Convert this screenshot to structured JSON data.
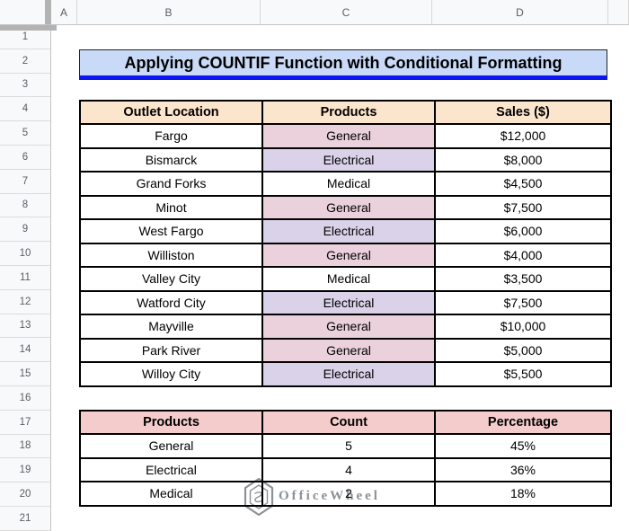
{
  "sheet": {
    "column_headers": [
      "A",
      "B",
      "C",
      "D"
    ],
    "row_numbers": [
      "1",
      "2",
      "3",
      "4",
      "5",
      "6",
      "7",
      "8",
      "9",
      "10",
      "11",
      "12",
      "13",
      "14",
      "15",
      "16",
      "17",
      "18",
      "19",
      "20",
      "21"
    ]
  },
  "title": {
    "text": "Applying COUNTIF Function with Conditional Formatting",
    "bg_color": "#c9daf8",
    "underline_color": "#0b16f2"
  },
  "sales_table": {
    "header_bg": "#fce5cd",
    "headers": [
      "Outlet Location",
      "Products",
      "Sales ($)"
    ],
    "rows": [
      {
        "outlet": "Fargo",
        "product": "General",
        "sales": "$12,000"
      },
      {
        "outlet": "Bismarck",
        "product": "Electrical",
        "sales": "$8,000"
      },
      {
        "outlet": "Grand Forks",
        "product": "Medical",
        "sales": "$4,500"
      },
      {
        "outlet": "Minot",
        "product": "General",
        "sales": "$7,500"
      },
      {
        "outlet": "West Fargo",
        "product": "Electrical",
        "sales": "$6,000"
      },
      {
        "outlet": "Williston",
        "product": "General",
        "sales": "$4,000"
      },
      {
        "outlet": "Valley City",
        "product": "Medical",
        "sales": "$3,500"
      },
      {
        "outlet": "Watford City",
        "product": "Electrical",
        "sales": "$7,500"
      },
      {
        "outlet": "Mayville",
        "product": "General",
        "sales": "$10,000"
      },
      {
        "outlet": "Park River",
        "product": "General",
        "sales": "$5,000"
      },
      {
        "outlet": "Willoy City",
        "product": "Electrical",
        "sales": "$5,500"
      }
    ]
  },
  "conditional_formatting": {
    "General": "#ead1dc",
    "Electrical": "#d9d2e9",
    "Medical": "#ffffff"
  },
  "summary_table": {
    "header_bg": "#f4cccc",
    "headers": [
      "Products",
      "Count",
      "Percentage"
    ],
    "rows": [
      {
        "product": "General",
        "count": "5",
        "percentage": "45%"
      },
      {
        "product": "Electrical",
        "count": "4",
        "percentage": "36%"
      },
      {
        "product": "Medical",
        "count": "2",
        "percentage": "18%"
      }
    ]
  },
  "watermark": {
    "text": "OfficeWheel"
  }
}
